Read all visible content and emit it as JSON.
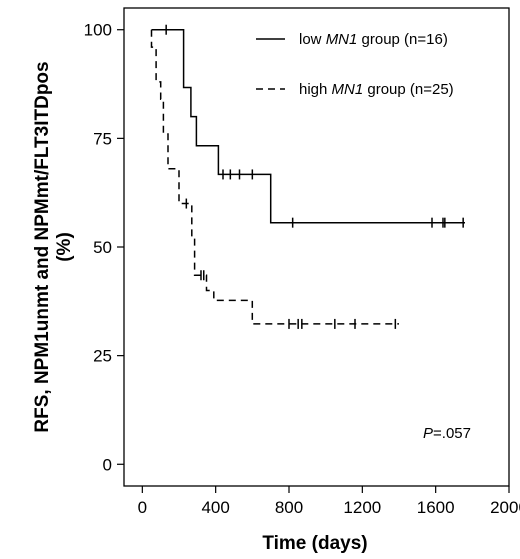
{
  "chart_data": {
    "type": "line",
    "subtype": "kaplan-meier",
    "xlabel": "Time (days)",
    "ylabel_line1": "RFS, NPM1unmt and NPMmt/FLT3ITDpos",
    "ylabel_line2": "(%)",
    "xlim": [
      -100,
      2000
    ],
    "ylim": [
      -5,
      105
    ],
    "xticks": [
      0,
      400,
      800,
      1200,
      1600,
      2000
    ],
    "yticks": [
      0,
      25,
      50,
      75,
      100
    ],
    "xtick_labels": [
      "0",
      "400",
      "800",
      "1200",
      "1600",
      "2000"
    ],
    "ytick_labels": [
      "0",
      "25",
      "50",
      "75",
      "100"
    ],
    "grid": false,
    "legend_position": "top-right",
    "annotation": {
      "italic": "P",
      "rest": "=.057"
    },
    "series": [
      {
        "name_prefix": "low ",
        "name_italic": "MN1",
        "name_suffix": " group (n=16)",
        "line_style": "solid",
        "steps": [
          [
            50,
            100
          ],
          [
            225,
            100
          ],
          [
            225,
            86.7
          ],
          [
            265,
            86.7
          ],
          [
            265,
            80
          ],
          [
            295,
            80
          ],
          [
            295,
            73.3
          ],
          [
            415,
            73.3
          ],
          [
            415,
            66.7
          ],
          [
            700,
            66.7
          ],
          [
            700,
            55.6
          ],
          [
            1760,
            55.6
          ]
        ],
        "censors": [
          [
            130,
            100
          ],
          [
            440,
            66.7
          ],
          [
            480,
            66.7
          ],
          [
            530,
            66.7
          ],
          [
            600,
            66.7
          ],
          [
            820,
            55.6
          ],
          [
            1580,
            55.6
          ],
          [
            1640,
            55.6
          ],
          [
            1650,
            55.6
          ],
          [
            1750,
            55.6
          ]
        ]
      },
      {
        "name_prefix": "high ",
        "name_italic": "MN1",
        "name_suffix": " group (n=25)",
        "line_style": "dashed",
        "steps": [
          [
            50,
            100
          ],
          [
            50,
            96
          ],
          [
            75,
            96
          ],
          [
            75,
            88
          ],
          [
            100,
            88
          ],
          [
            100,
            84
          ],
          [
            115,
            84
          ],
          [
            115,
            76
          ],
          [
            140,
            76
          ],
          [
            140,
            68
          ],
          [
            200,
            68
          ],
          [
            200,
            60
          ],
          [
            270,
            60
          ],
          [
            270,
            52
          ],
          [
            285,
            52
          ],
          [
            285,
            43.5
          ],
          [
            350,
            43.5
          ],
          [
            350,
            40
          ],
          [
            390,
            40
          ],
          [
            390,
            37.7
          ],
          [
            600,
            37.7
          ],
          [
            600,
            32.3
          ],
          [
            1400,
            32.3
          ]
        ],
        "censors": [
          [
            240,
            60
          ],
          [
            320,
            43.5
          ],
          [
            335,
            43.5
          ],
          [
            800,
            32.3
          ],
          [
            850,
            32.3
          ],
          [
            870,
            32.3
          ],
          [
            1050,
            32.3
          ],
          [
            1160,
            32.3
          ],
          [
            1380,
            32.3
          ]
        ]
      }
    ]
  }
}
